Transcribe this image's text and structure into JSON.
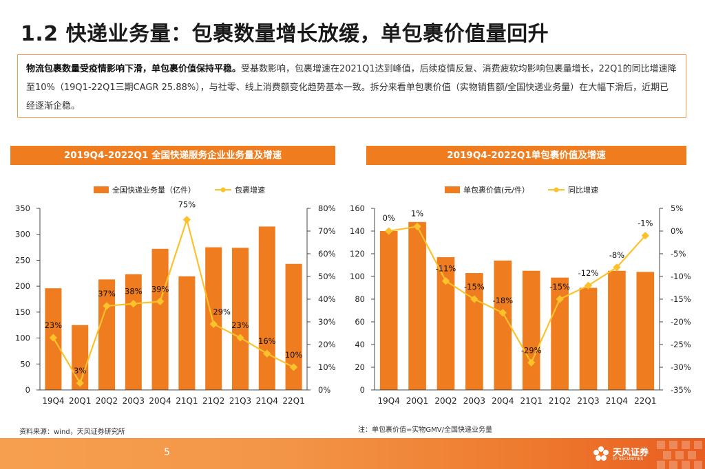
{
  "page": {
    "title": "1.2 快递业务量：包裹数量增长放缓，单包裹价值量回升",
    "summary_bold": "物流包裹数量受疫情影响下滑，单包裹价值保持平稳。",
    "summary_text": "受基数影响，包裹增速在2021Q1达到峰值，后续疫情反复、消费疲软均影响包裹量增长，22Q1的同比增速降至10%（19Q1-22Q1三期CAGR 25.88%），与社零、线上消费额变化趋势基本一致。拆分来看单包裹价值（实物销售额/全国快递业务量）在大幅下滑后，近期已经逐渐企稳。",
    "page_number": "5",
    "logo_text": "天风证券",
    "logo_sub": "TF SECURITIES"
  },
  "colors": {
    "bar": "#ef7d1f",
    "line": "#fbc22c",
    "header": "#ef7d1f"
  },
  "chart_data": [
    {
      "type": "bar",
      "header": "2019Q4-2022Q1 全国快递服务企业业务量及增速",
      "categories": [
        "19Q4",
        "20Q1",
        "20Q2",
        "20Q3",
        "20Q4",
        "21Q1",
        "21Q2",
        "21Q3",
        "21Q4",
        "22Q1"
      ],
      "series": [
        {
          "name": "全国快递业务量（亿件）",
          "kind": "bar",
          "axis": "left",
          "values": [
            196,
            125,
            213,
            223,
            272,
            219,
            275,
            274,
            315,
            243
          ]
        },
        {
          "name": "包裹增速",
          "kind": "line",
          "axis": "right",
          "values": [
            23,
            3,
            37,
            38,
            39,
            75,
            29,
            23,
            16,
            10
          ],
          "labels": [
            "23%",
            "3%",
            "37%",
            "38%",
            "39%",
            "75%",
            "29%",
            "23%",
            "16%",
            "10%"
          ]
        }
      ],
      "ylim": [
        0,
        350
      ],
      "yticks": [
        "0",
        "50",
        "100",
        "150",
        "200",
        "250",
        "300",
        "350"
      ],
      "y2lim": [
        0,
        80
      ],
      "y2ticks": [
        "0%",
        "10%",
        "20%",
        "30%",
        "40%",
        "50%",
        "60%",
        "70%",
        "80%"
      ],
      "note": "资料来源：wind，天风证券研究所"
    },
    {
      "type": "bar",
      "header": "2019Q4-2022Q1单包裹价值及增速",
      "categories": [
        "19Q4",
        "20Q1",
        "20Q2",
        "20Q3",
        "20Q4",
        "21Q1",
        "21Q2",
        "21Q3",
        "21Q4",
        "22Q1"
      ],
      "series": [
        {
          "name": "单包裹价值(元/件）",
          "kind": "bar",
          "axis": "left",
          "values": [
            140,
            148,
            117,
            103,
            114,
            105,
            99,
            90,
            105,
            104
          ]
        },
        {
          "name": "同比增速",
          "kind": "line",
          "axis": "right",
          "values": [
            0,
            1,
            -11,
            -15,
            -18,
            -29,
            -15,
            -12,
            -8,
            -1
          ],
          "labels": [
            "0%",
            "1%",
            "-11%",
            "-15%",
            "-18%",
            "-29%",
            "-15%",
            "-12%",
            "-8%",
            "-1%"
          ]
        }
      ],
      "ylim": [
        0,
        160
      ],
      "yticks": [
        "0",
        "20",
        "40",
        "60",
        "80",
        "100",
        "120",
        "140",
        "160"
      ],
      "y2lim": [
        -35,
        5
      ],
      "y2ticks": [
        "-35%",
        "-30%",
        "-25%",
        "-20%",
        "-15%",
        "-10%",
        "-5%",
        "0%",
        "5%"
      ],
      "note": "注：单包裹价值=实物GMV/全国快递业务量"
    }
  ]
}
